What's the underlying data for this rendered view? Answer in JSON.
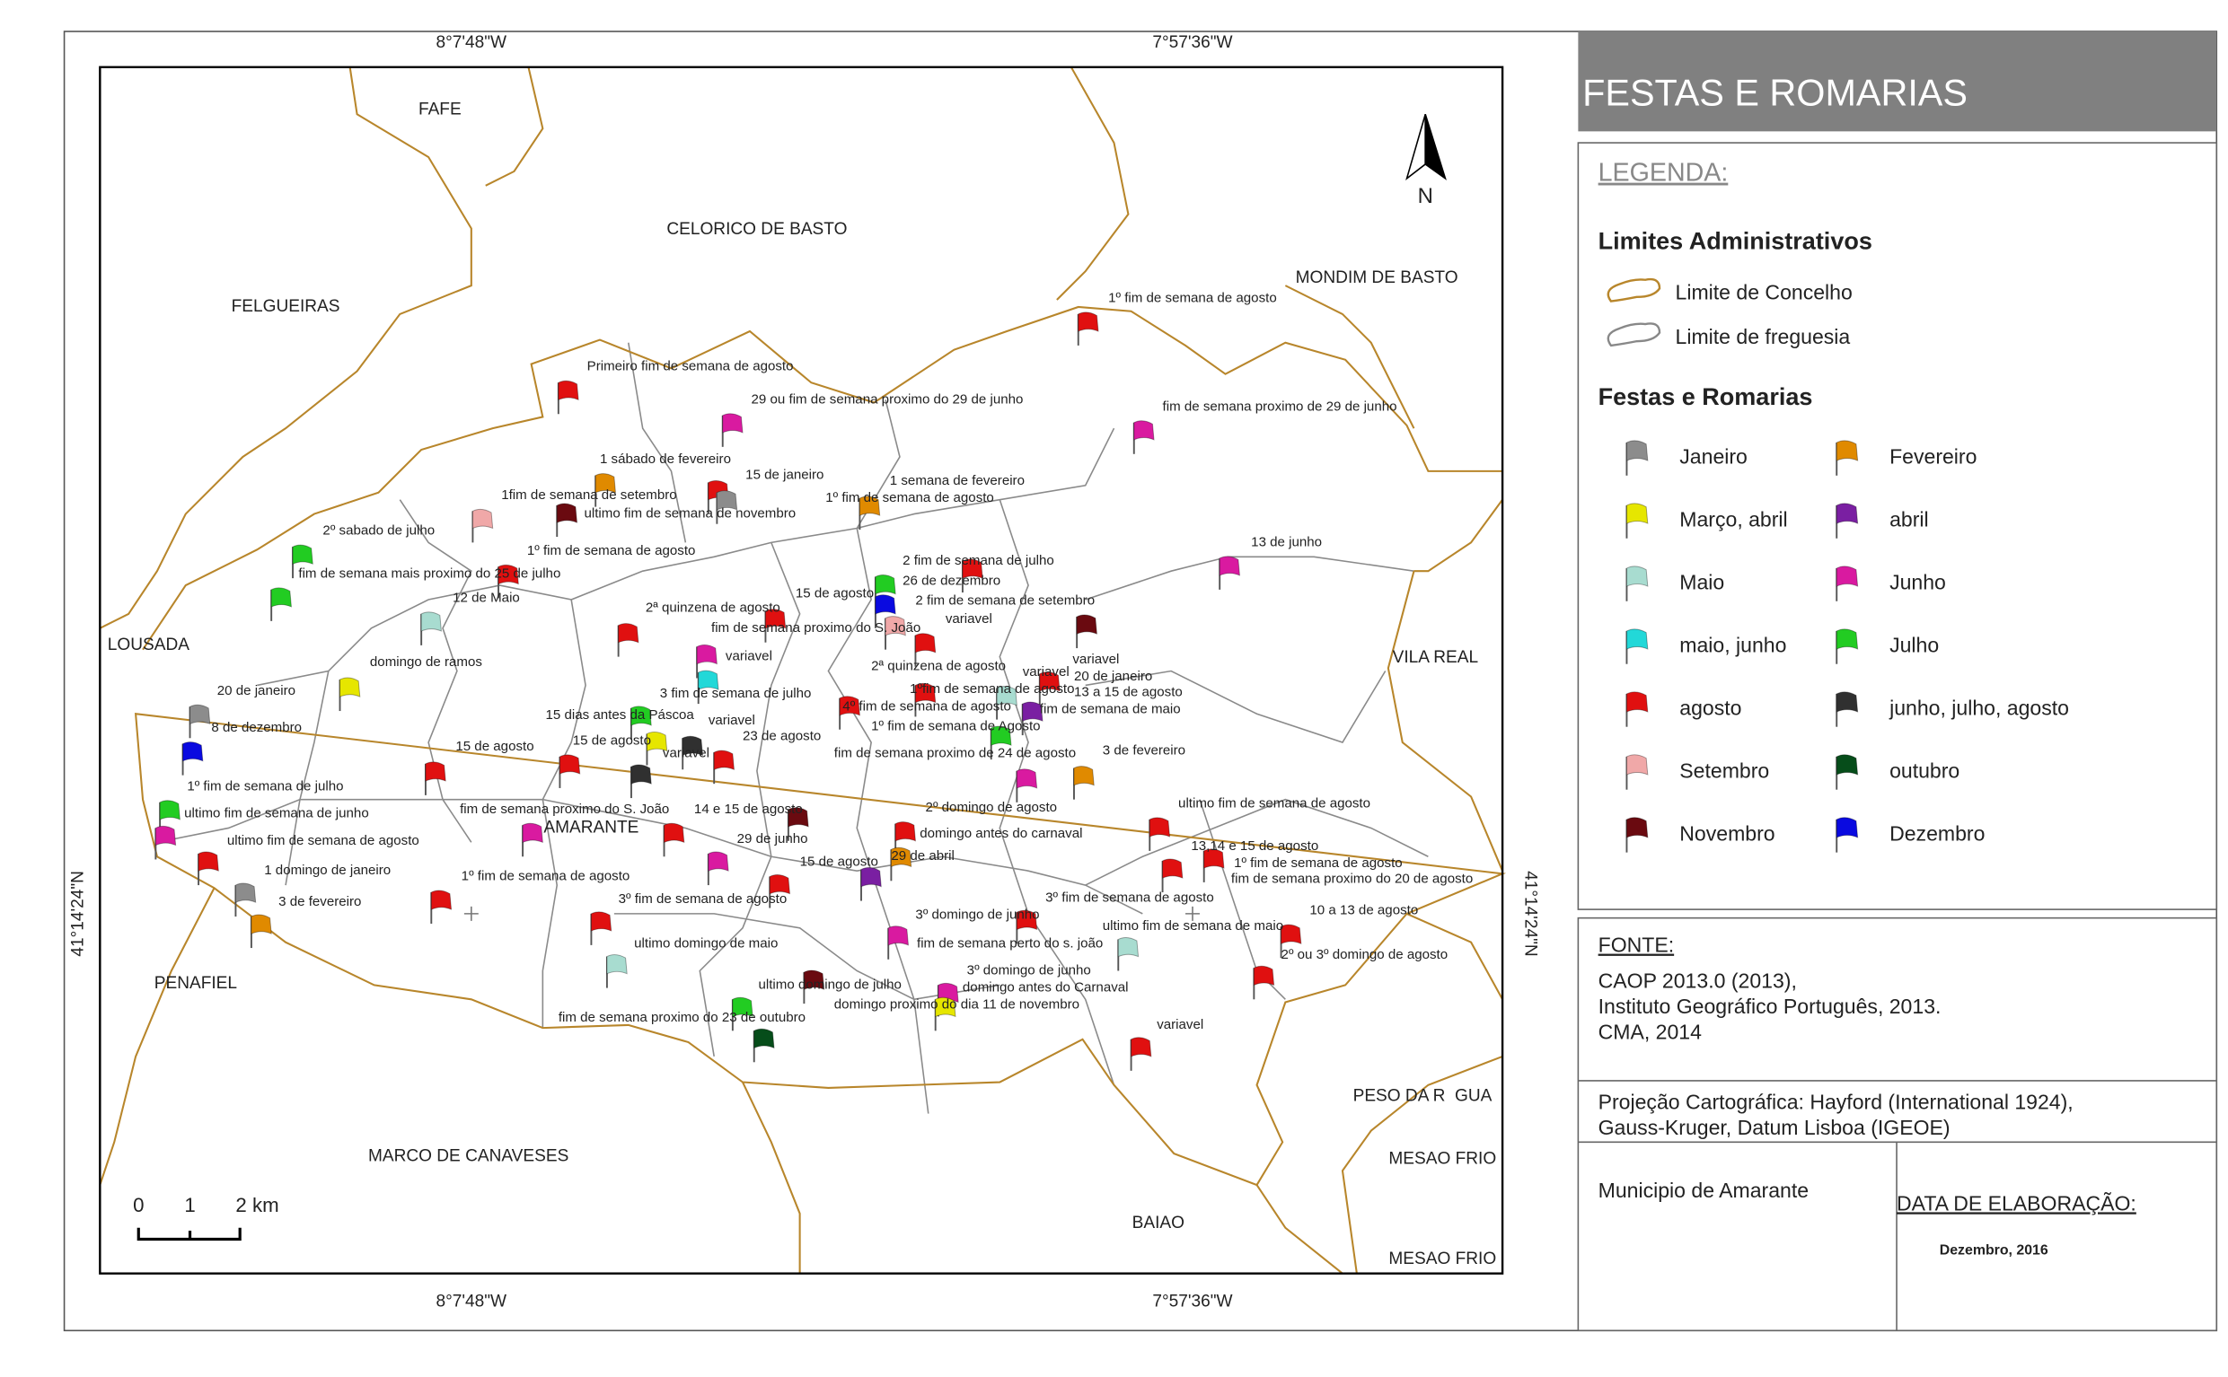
{
  "title": "FESTAS E ROMARIAS",
  "coords": {
    "top": [
      "8°7'48\"W",
      "7°57'36\"W"
    ],
    "bottom": [
      "8°7'48\"W",
      "7°57'36\"W"
    ],
    "left": "41°14'24\"N",
    "right": "41°14'24\"N"
  },
  "north": "N",
  "scale": [
    "0",
    "1",
    "2 km"
  ],
  "places": [
    "FAFE",
    "CELORICO DE BASTO",
    "MONDIM DE BASTO",
    "FELGUEIRAS",
    "LOUSADA",
    "VILA REAL",
    "AMARANTE",
    "PENAFIEL",
    "PESO DA R  GUA",
    "MARCO DE CANAVESES",
    "MESAO FRIO",
    "BAIAO",
    "MESAO FRIO"
  ],
  "legend": {
    "heading": "LEGENDA:",
    "limits_title": "Limites Administrativos",
    "limits": [
      {
        "label": "Limite de Concelho",
        "color": "#b8862b"
      },
      {
        "label": "Limite de freguesia",
        "color": "#888888"
      }
    ],
    "festas_title": "Festas e Romarias",
    "items": [
      {
        "label": "Janeiro",
        "color": "#8c8c8c"
      },
      {
        "label": "Fevereiro",
        "color": "#e08a00"
      },
      {
        "label": "Março, abril",
        "color": "#e6e600"
      },
      {
        "label": "abril",
        "color": "#7a1fa2"
      },
      {
        "label": "Maio",
        "color": "#a8dcd0"
      },
      {
        "label": "Junho",
        "color": "#d91aa0"
      },
      {
        "label": "maio, junho",
        "color": "#22d8d8"
      },
      {
        "label": "Julho",
        "color": "#22cc22"
      },
      {
        "label": "agosto",
        "color": "#e01010"
      },
      {
        "label": "junho, julho, agosto",
        "color": "#303030"
      },
      {
        "label": "Setembro",
        "color": "#f0a8a8"
      },
      {
        "label": "outubro",
        "color": "#064d1a"
      },
      {
        "label": "Novembro",
        "color": "#6a0a10"
      },
      {
        "label": "Dezembro",
        "color": "#0a0ae0"
      }
    ]
  },
  "source": {
    "heading": "FONTE:",
    "lines": [
      "CAOP 2013.0 (2013),",
      "Instituto Geográfico Português, 2013.",
      "CMA, 2014"
    ]
  },
  "projection": [
    "Projeção Cartográfica: Hayford (International 1924),",
    "Gauss-Kruger, Datum Lisboa (IGEOE)"
  ],
  "municipality": "Municipio de Amarante",
  "date": {
    "heading": "DATA DE ELABORAÇÃO:",
    "value": "Dezembro, 2016"
  },
  "events": [
    "1º fim de semana de agosto",
    "Primeiro fim de semana de agosto",
    "29 ou fim de semana proximo do 29 de junho",
    "fim de semana proximo de 29 de junho",
    "1 sábado de fevereiro",
    "15 de janeiro",
    "1 semana de fevereiro",
    "1fim de semana de setembro",
    "1º fim de semana de agosto",
    "ultimo fim de semana de novembro",
    "2º sabado de julho",
    "1º fim de semana de agosto",
    "13 de junho",
    "2 fim de semana de julho",
    "fim de semana mais proximo do 25 de julho",
    "26 de dezembro",
    "12 de Maio",
    "15 de agosto",
    "2 fim de semana de setembro",
    "2ª quinzena de agosto",
    "variavel",
    "fim de semana proximo do S. João",
    "variavel",
    "variavel",
    "domingo de ramos",
    "2ª quinzena de agosto",
    "variavel",
    "20 de janeiro",
    "20 de janeiro",
    "3 fim de semana de julho",
    "1ºfim de semana de agosto",
    "13 a 15 de agosto",
    "4º fim de semana de agosto",
    "fim de semana de maio",
    "15 dias antes da Páscoa",
    "variavel",
    "8 de dezembro",
    "1º fim de semana de Agosto",
    "15 de agosto",
    "23 de agosto",
    "15 de agosto",
    "variavel",
    "fim de semana proximo de 24 de agosto",
    "3 de fevereiro",
    "1º fim de semana de julho",
    "2º domingo de agosto",
    "ultimo fim de semana de agosto",
    "ultimo fim de semana de junho",
    "fim de semana proximo do S. João",
    "14 e 15 de agosto",
    "domingo antes do carnaval",
    "ultimo fim de semana de agosto",
    "29 de junho",
    "13,14 e 15 de agosto",
    "29 de abril",
    "15 de agosto",
    "1º fim de semana de agosto",
    "1 domingo de janeiro",
    "1º fim de semana de agosto",
    "fim de semana proximo do 20 de agosto",
    "3 de fevereiro",
    "3º fim de semana de agosto",
    "3º fim de semana de agosto",
    "10 a 13 de agosto",
    "3º domingo de junho",
    "ultimo fim de semana de maio",
    "fim de semana perto do s. joão",
    "ultimo domingo de maio",
    "2º ou 3º domingo de agosto",
    "3º domingo de junho",
    "ultimo domingo de julho",
    "domingo antes do Carnaval",
    "domingo proximo do dia 11 de novembro",
    "fim de semana proximo do 23 de outubro",
    "variavel"
  ]
}
